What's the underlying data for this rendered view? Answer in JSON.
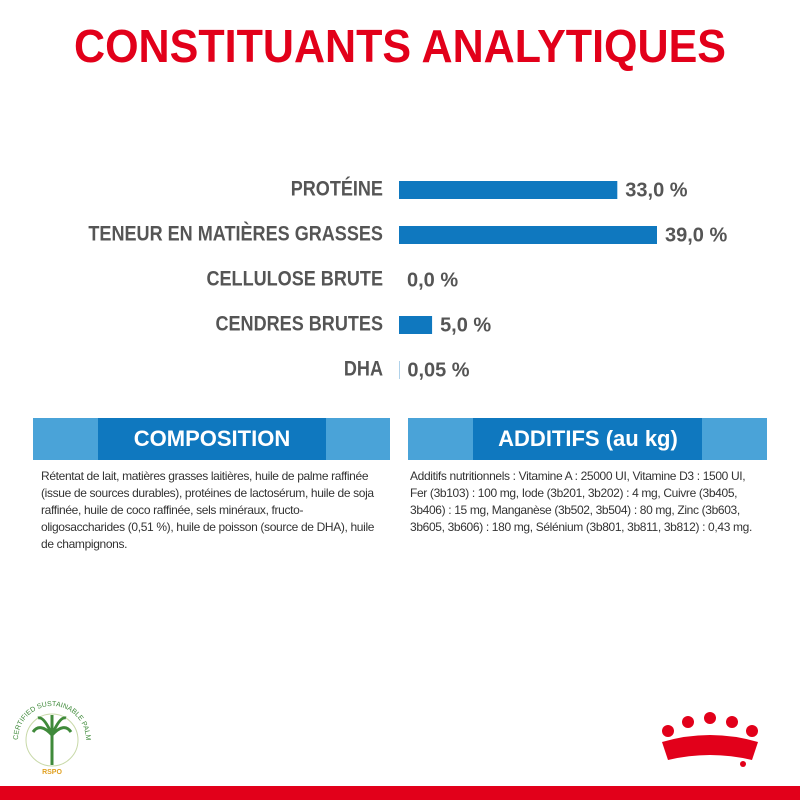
{
  "title": "CONSTITUANTS ANALYTIQUES",
  "chart_data": {
    "type": "bar",
    "orientation": "horizontal",
    "color": "#0f78bf",
    "categories": [
      "PROTÉINE",
      "TENEUR EN MATIÈRES GRASSES",
      "CELLULOSE BRUTE",
      "CENDRES BRUTES",
      "DHA"
    ],
    "values": [
      33.0,
      39.0,
      0.0,
      5.0,
      0.05
    ],
    "value_labels": [
      "33,0 %",
      "39,0 %",
      "0,0 %",
      "5,0 %",
      "0,05 %"
    ]
  },
  "composition": {
    "heading": "COMPOSITION",
    "text": "Rétentat de lait, matières grasses laitières, huile de palme raffinée (issue de sources durables), protéines de lactosérum, huile de soja raffinée, huile de coco raffinée, sels minéraux, fructo-oligosaccharides (0,51 %), huile de poisson (source de DHA), huile de champignons."
  },
  "additifs": {
    "heading": "ADDITIFS (au kg)",
    "text": "Additifs nutritionnels : Vitamine A : 25000 UI, Vitamine D3 : 1500 UI, Fer (3b103) : 100 mg, Iode (3b201, 3b202) : 4 mg, Cuivre (3b405, 3b406) : 15 mg, Manganèse (3b502, 3b504) : 80 mg, Zinc (3b603, 3b605, 3b606) : 180 mg, Sélénium (3b801, 3b811, 3b812) : 0,43 mg."
  },
  "rspo": {
    "ring": "CERTIFIED SUSTAINABLE PALM OIL",
    "label": "RSPO"
  }
}
